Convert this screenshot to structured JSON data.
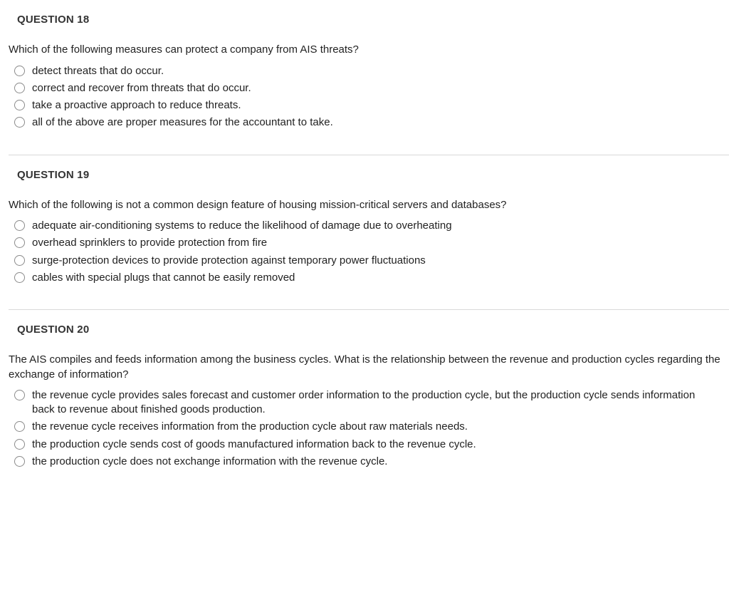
{
  "questions": [
    {
      "header": "QUESTION 18",
      "prompt": "Which of the following measures can protect a company from AIS threats?",
      "options": [
        "detect threats that do occur.",
        "correct and recover from threats that do occur.",
        "take a proactive approach to reduce threats.",
        "all of the above are proper measures for the accountant to take."
      ]
    },
    {
      "header": "QUESTION 19",
      "prompt": "Which of the following is not a common design feature of housing mission-critical servers and databases?",
      "options": [
        "adequate air-conditioning systems to reduce the likelihood of damage due to overheating",
        "overhead sprinklers to provide protection from fire",
        "surge-protection devices to provide protection against temporary power fluctuations",
        "cables with special plugs that cannot be easily removed"
      ]
    },
    {
      "header": "QUESTION 20",
      "prompt": "The AIS compiles and feeds information among the business cycles. What is the relationship between the revenue and production cycles regarding the exchange of information?",
      "options": [
        "the revenue cycle provides sales forecast and customer order information to the production cycle, but the production cycle sends information back to revenue about finished goods production.",
        "the revenue cycle receives information from the production cycle about raw materials needs.",
        "the production cycle sends cost of goods manufactured information back to the revenue cycle.",
        "the production cycle does not exchange information with the revenue cycle."
      ]
    }
  ]
}
